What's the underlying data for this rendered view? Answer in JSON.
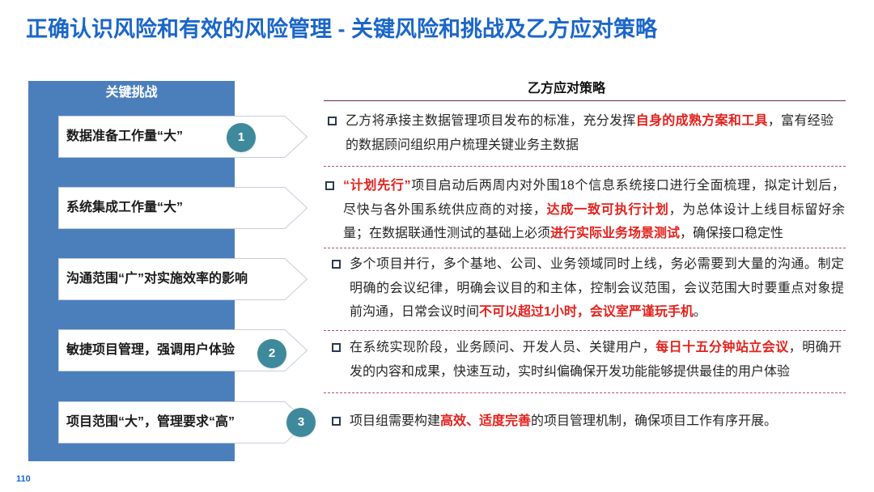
{
  "title": "正确认识风险和有效的风险管理 - 关键风险和挑战及乙方应对策略",
  "page_number": "110",
  "colors": {
    "title": "#1b66c9",
    "panel": "#4b7fbc",
    "badge": "#3e8a9c",
    "highlight": "#e3211c"
  },
  "challenges": {
    "header": "关键挑战",
    "items": [
      {
        "label": "数据准备工作量“大”",
        "badge": "1"
      },
      {
        "label": "系统集成工作量“大”"
      },
      {
        "label": "沟通范围“广”对实施效率的影响"
      },
      {
        "label": "敏捷项目管理，强调用户体验",
        "badge": "2"
      },
      {
        "label": "项目范围“大”，管理要求“高”",
        "badge": "3"
      }
    ]
  },
  "strategies": {
    "header": "乙方应对策略",
    "items": [
      {
        "lines": [
          [
            {
              "text": "乙方将承接主数据管理项目发布的标准，充分发挥"
            },
            {
              "text": "自身的成熟方案和工具",
              "emphasis": true
            },
            {
              "text": "，富有经验"
            }
          ],
          [
            {
              "text": "的数据顾问组织用户梳理关键业务主数据"
            }
          ]
        ]
      },
      {
        "lines": [
          [
            {
              "text": "“计划先行”",
              "emphasis": true
            },
            {
              "text": "项目启动后两周内对外围18个信息系统接口进行全面梳理，拟定计划后，"
            }
          ],
          [
            {
              "text": "尽快与各外围系统供应商的对接，"
            },
            {
              "text": "达成一致可执行计划",
              "emphasis": true
            },
            {
              "text": "，为总体设计上线目标留好余"
            }
          ],
          [
            {
              "text": "量；在数据联通性测试的基础上必须"
            },
            {
              "text": "进行实际业务场景测试",
              "emphasis": true
            },
            {
              "text": "，确保接口稳定性"
            }
          ]
        ]
      },
      {
        "lines": [
          [
            {
              "text": "多个项目并行，多个基地、公司、业务领域同时上线，务必需要到大量的沟通。制定"
            }
          ],
          [
            {
              "text": "明确的会议纪律，明确会议目的和主体，控制会议范围，会议范围大时要重点对象提"
            }
          ],
          [
            {
              "text": "前沟通，日常会议时间"
            },
            {
              "text": "不可以超过1小时，会议室严谨玩手机",
              "emphasis": true
            },
            {
              "text": "。"
            }
          ]
        ]
      },
      {
        "lines": [
          [
            {
              "text": "在系统实现阶段，业务顾问、开发人员、关键用户，"
            },
            {
              "text": "每日十五分钟站立会议",
              "emphasis": true
            },
            {
              "text": "，明确开"
            }
          ],
          [
            {
              "text": "发的内容和成果，快速互动，实时纠偏确保开发功能能够提供最佳的用户体验"
            }
          ]
        ]
      },
      {
        "lines": [
          [
            {
              "text": "项目组需要构建"
            },
            {
              "text": "高效、适度完善",
              "emphasis": true
            },
            {
              "text": "的项目管理机制，确保项目工作有序开展。"
            }
          ]
        ]
      }
    ]
  }
}
